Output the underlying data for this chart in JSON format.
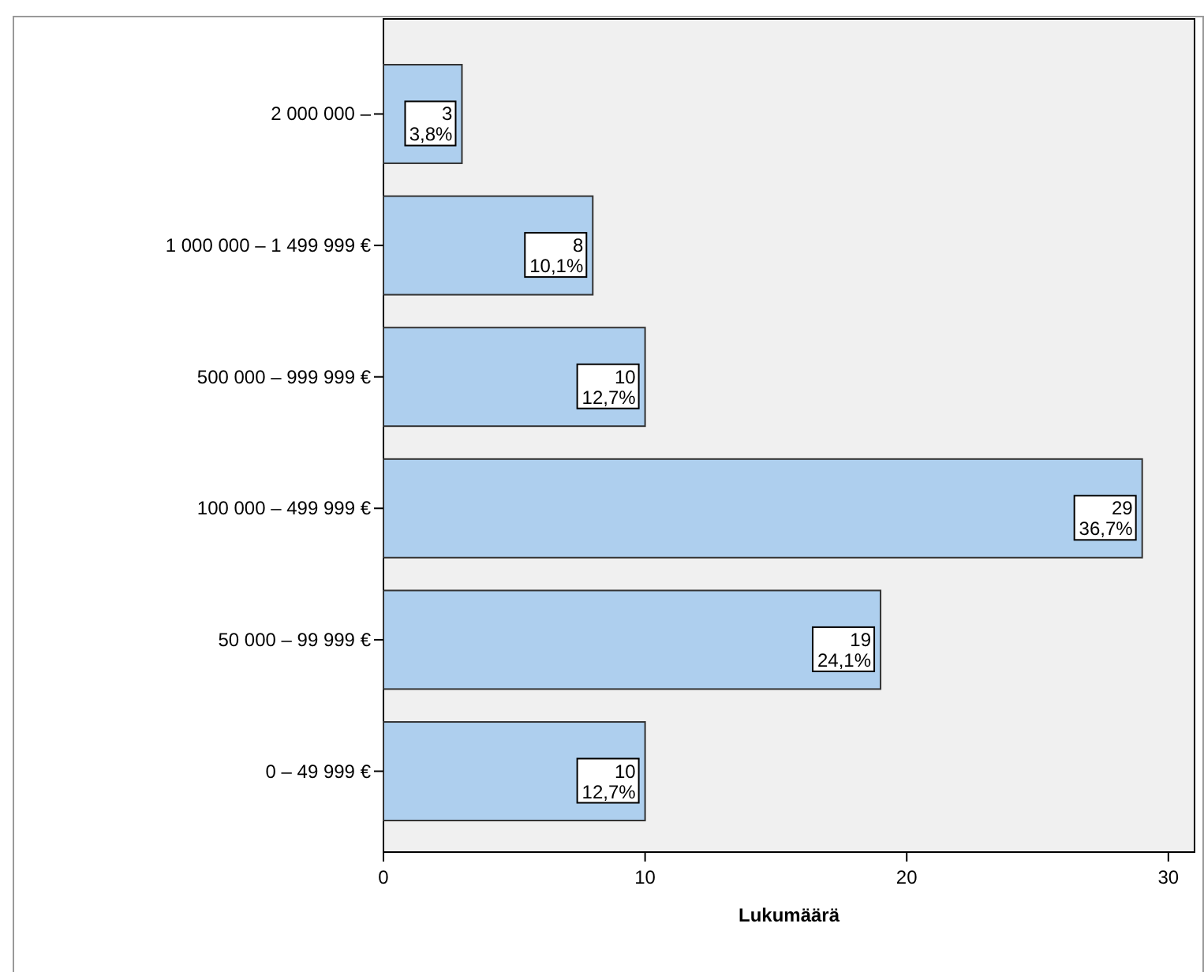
{
  "chart_data": {
    "type": "bar",
    "orientation": "horizontal",
    "xlabel": "Lukumäärä",
    "categories": [
      "2 000 000 –",
      "1 000 000 – 1 499 999 €",
      "500 000 – 999 999 €",
      "100 000 – 499 999 €",
      "50 000 – 99 999 €",
      "0 – 49 999 €"
    ],
    "values": [
      3,
      8,
      10,
      29,
      19,
      10
    ],
    "value_labels": [
      "3\n3,8%",
      "8\n10,1%",
      "10\n12,7%",
      "29\n36,7%",
      "19\n24,1%",
      "10\n12,7%"
    ],
    "color": "#aecfee",
    "xlim": [
      0,
      31
    ],
    "xticks": [
      0,
      10,
      20,
      30
    ],
    "grid": false
  }
}
